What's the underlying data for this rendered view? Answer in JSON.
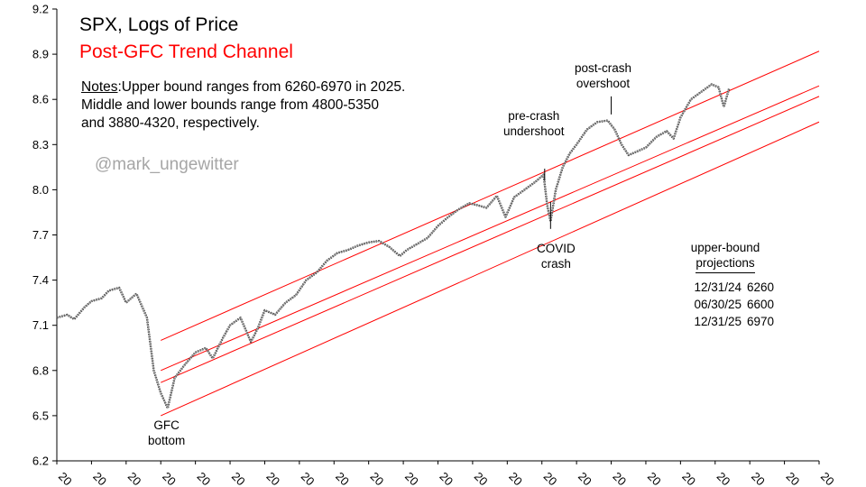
{
  "title": "SPX, Logs of Price",
  "subtitle": "Post-GFC Trend Channel",
  "notes": {
    "label": "Notes",
    "text": ":Upper bound ranges from 6260-6970 in 2025. Middle and lower bounds range from 4800-5350 and 3880-4320, respectively."
  },
  "handle": "@mark_ungewitter",
  "annotations": {
    "gfc": [
      "GFC",
      "bottom"
    ],
    "covid": [
      "COVID",
      "crash"
    ],
    "undershoot": [
      "pre-crash",
      "undershoot"
    ],
    "overshoot": [
      "post-crash",
      "overshoot"
    ]
  },
  "projections": {
    "header": [
      "upper-bound",
      "projections"
    ],
    "rows": [
      {
        "date": "12/31/24",
        "value": "6260"
      },
      {
        "date": "06/30/25",
        "value": "6600"
      },
      {
        "date": "12/31/25",
        "value": "6970"
      }
    ]
  },
  "chart_data": {
    "type": "line",
    "title": "SPX, Logs of Price",
    "subtitle": "Post-GFC Trend Channel",
    "ylim": [
      6.2,
      9.2
    ],
    "yticks": [
      "6.2",
      "6.5",
      "6.8",
      "7.1",
      "7.4",
      "7.7",
      "8.0",
      "8.3",
      "8.6",
      "8.9",
      "9.2"
    ],
    "xlim": [
      2006,
      2028
    ],
    "xtick_labels": [
      "20",
      "20",
      "20",
      "20",
      "20",
      "20",
      "20",
      "20",
      "20",
      "20",
      "20",
      "20",
      "20",
      "20",
      "20",
      "20",
      "20",
      "20",
      "20",
      "20",
      "20",
      "20",
      "20"
    ],
    "grid": false,
    "colors": {
      "price": "#404040",
      "channel": "#ff0000"
    },
    "series": [
      {
        "x": [
          2006.0,
          2006.3,
          2006.5,
          2006.8,
          2007.0,
          2007.3,
          2007.5,
          2007.8,
          2008.0,
          2008.3,
          2008.6,
          2008.8,
          2009.0,
          2009.2,
          2009.4,
          2009.7,
          2010.0,
          2010.3,
          2010.5,
          2010.8,
          2011.0,
          2011.3,
          2011.6,
          2011.8,
          2012.0,
          2012.3,
          2012.6,
          2012.9,
          2013.2,
          2013.5,
          2013.8,
          2014.1,
          2014.4,
          2014.7,
          2015.0,
          2015.3,
          2015.6,
          2015.9,
          2016.1,
          2016.4,
          2016.7,
          2017.0,
          2017.3,
          2017.6,
          2017.9,
          2018.1,
          2018.4,
          2018.7,
          2018.95,
          2019.2,
          2019.5,
          2019.8,
          2020.05,
          2020.15,
          2020.25,
          2020.4,
          2020.6,
          2020.8,
          2021.0,
          2021.3,
          2021.6,
          2021.9,
          2022.1,
          2022.3,
          2022.5,
          2022.8,
          2023.0,
          2023.3,
          2023.6,
          2023.8,
          2024.0,
          2024.3,
          2024.6,
          2024.9,
          2025.1,
          2025.25,
          2025.4
        ],
        "y": [
          7.15,
          7.17,
          7.14,
          7.22,
          7.26,
          7.28,
          7.33,
          7.35,
          7.25,
          7.31,
          7.15,
          6.8,
          6.65,
          6.55,
          6.75,
          6.84,
          6.92,
          6.95,
          6.88,
          7.02,
          7.1,
          7.15,
          6.99,
          7.08,
          7.2,
          7.17,
          7.25,
          7.3,
          7.4,
          7.45,
          7.53,
          7.58,
          7.6,
          7.63,
          7.65,
          7.66,
          7.62,
          7.56,
          7.6,
          7.64,
          7.68,
          7.76,
          7.82,
          7.87,
          7.91,
          7.9,
          7.88,
          7.96,
          7.82,
          7.95,
          8.0,
          8.05,
          8.1,
          7.9,
          7.79,
          8.0,
          8.15,
          8.24,
          8.3,
          8.4,
          8.45,
          8.46,
          8.4,
          8.3,
          8.23,
          8.26,
          8.28,
          8.35,
          8.39,
          8.34,
          8.48,
          8.6,
          8.65,
          8.7,
          8.68,
          8.55,
          8.67
        ]
      }
    ],
    "channel": {
      "x": [
        2009.0,
        2028.0
      ],
      "upper": [
        7.0,
        8.92
      ],
      "middle": [
        6.8,
        8.69
      ],
      "lower_upper": [
        6.72,
        8.62
      ],
      "lower": [
        6.5,
        8.45
      ]
    }
  }
}
